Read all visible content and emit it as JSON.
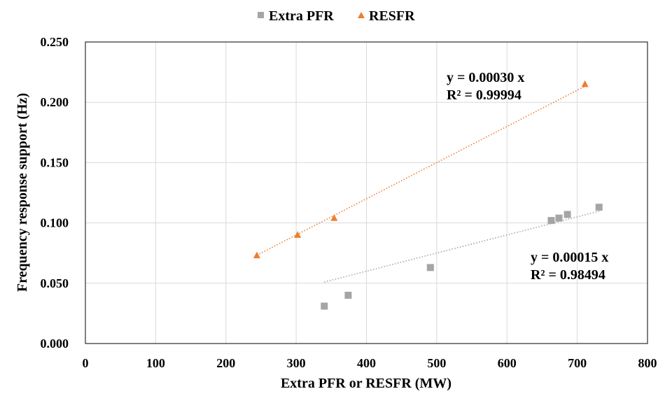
{
  "chart_data": {
    "type": "scatter",
    "title": "",
    "xlabel": "Extra PFR or RESFR (MW)",
    "ylabel": "Frequency response support (Hz)",
    "xlim": [
      0,
      800
    ],
    "ylim": [
      0,
      0.25
    ],
    "x_ticks": [
      "0",
      "100",
      "200",
      "300",
      "400",
      "500",
      "600",
      "700",
      "800"
    ],
    "y_ticks": [
      "0.000",
      "0.050",
      "0.100",
      "0.150",
      "0.200",
      "0.250"
    ],
    "grid": true,
    "legend_position": "top-center",
    "series": [
      {
        "name": "Extra PFR",
        "marker": "square",
        "color": "#a5a5a5",
        "points": [
          {
            "x": 340,
            "y": 0.031
          },
          {
            "x": 374,
            "y": 0.04
          },
          {
            "x": 491,
            "y": 0.063
          },
          {
            "x": 663,
            "y": 0.102
          },
          {
            "x": 674,
            "y": 0.104
          },
          {
            "x": 686,
            "y": 0.107
          },
          {
            "x": 731,
            "y": 0.113
          }
        ],
        "trendline": {
          "slope": 0.00015,
          "x_range": [
            340,
            731
          ],
          "equation": "y = 0.00015 x",
          "r2": "R² = 0.98494"
        }
      },
      {
        "name": "RESFR",
        "marker": "triangle",
        "color": "#ed7d31",
        "points": [
          {
            "x": 244,
            "y": 0.073
          },
          {
            "x": 302,
            "y": 0.09
          },
          {
            "x": 354,
            "y": 0.104
          },
          {
            "x": 711,
            "y": 0.215
          }
        ],
        "trendline": {
          "slope": 0.0003,
          "x_range": [
            244,
            711
          ],
          "equation": "y = 0.00030 x",
          "r2": "R² = 0.99994"
        }
      }
    ]
  }
}
